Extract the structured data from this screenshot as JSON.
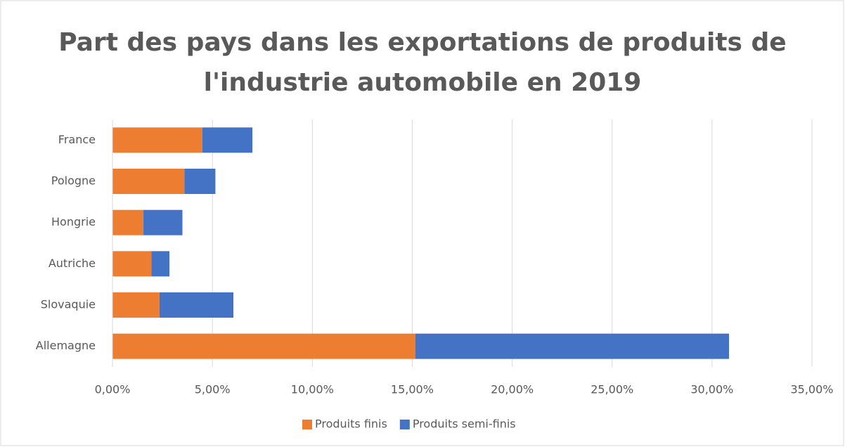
{
  "chart_data": {
    "type": "stacked-barh",
    "title": [
      "Part des pays dans les exportations de produits de",
      "l'industrie automobile en 2019"
    ],
    "categories": [
      "France",
      "Pologne",
      "Hongrie",
      "Autriche",
      "Slovaquie",
      "Allemagne"
    ],
    "series": [
      {
        "name": "Produits finis",
        "color": "#ed7d31",
        "values": [
          4.5,
          3.6,
          1.55,
          1.95,
          2.35,
          15.15
        ]
      },
      {
        "name": "Produits semi-finis",
        "color": "#4472c4",
        "values": [
          2.5,
          1.55,
          1.95,
          0.9,
          3.7,
          15.7
        ]
      }
    ],
    "xlim": [
      0,
      35
    ],
    "xticks": [
      {
        "value": 0,
        "label": "0,00%"
      },
      {
        "value": 5,
        "label": "5,00%"
      },
      {
        "value": 10,
        "label": "10,00%"
      },
      {
        "value": 15,
        "label": "15,00%"
      },
      {
        "value": 20,
        "label": "20,00%"
      },
      {
        "value": 25,
        "label": "25,00%"
      },
      {
        "value": 30,
        "label": "30,00%"
      },
      {
        "value": 35,
        "label": "35,00%"
      }
    ],
    "grid": true,
    "legend": "bottom"
  }
}
